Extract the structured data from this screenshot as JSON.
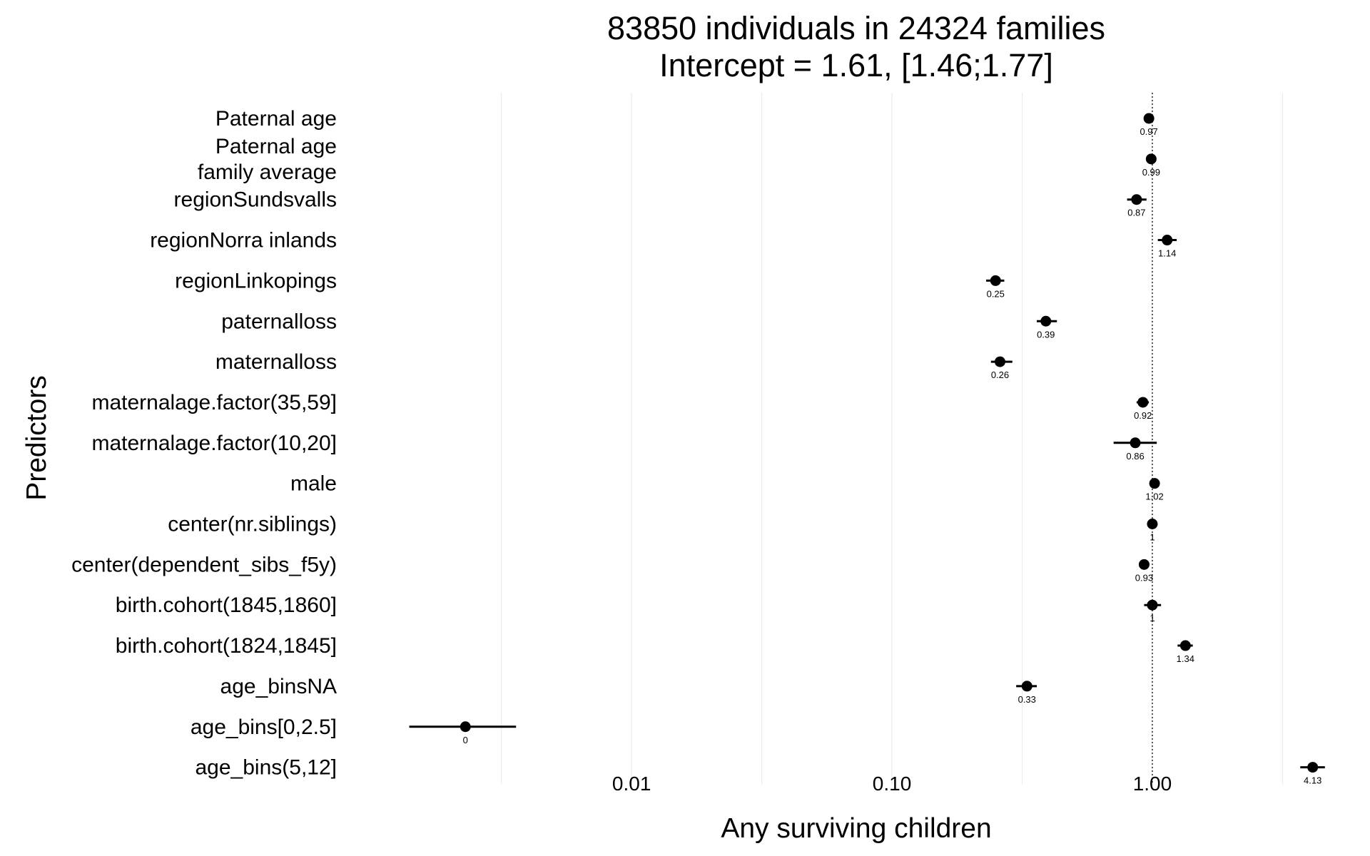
{
  "chart_data": {
    "type": "scatter",
    "title": "83850 individuals in 24324 families",
    "subtitle": "Intercept = 1.61, [1.46;1.77]",
    "xlabel": "Any surviving children",
    "ylabel": "Predictors",
    "x_scale": "log",
    "xlim": [
      0.00088,
      5.0
    ],
    "x_ticks": [
      0.01,
      0.1,
      1
    ],
    "x_tick_labels": [
      "0.01",
      "0.10",
      "1.00"
    ],
    "reference_line": 1,
    "grid": "vertical, faint",
    "legend": "none",
    "point_color": "#000000",
    "predictors": [
      {
        "label": "Paternal age",
        "estimate": 0.97,
        "ci_low": 0.94,
        "ci_high": 1.0,
        "value_label": "0.97"
      },
      {
        "label": "Paternal age\nfamily average",
        "estimate": 0.99,
        "ci_low": 0.97,
        "ci_high": 1.01,
        "value_label": "0.99"
      },
      {
        "label": "regionSundsvalls",
        "estimate": 0.87,
        "ci_low": 0.8,
        "ci_high": 0.95,
        "value_label": "0.87"
      },
      {
        "label": "regionNorra inlands",
        "estimate": 1.14,
        "ci_low": 1.05,
        "ci_high": 1.24,
        "value_label": "1.14"
      },
      {
        "label": "regionLinkopings",
        "estimate": 0.25,
        "ci_low": 0.23,
        "ci_high": 0.27,
        "value_label": "0.25"
      },
      {
        "label": "paternalloss",
        "estimate": 0.39,
        "ci_low": 0.36,
        "ci_high": 0.43,
        "value_label": "0.39"
      },
      {
        "label": "maternalloss",
        "estimate": 0.26,
        "ci_low": 0.24,
        "ci_high": 0.29,
        "value_label": "0.26"
      },
      {
        "label": "maternalage.factor(35,59]",
        "estimate": 0.92,
        "ci_low": 0.87,
        "ci_high": 0.97,
        "value_label": "0.92"
      },
      {
        "label": "maternalage.factor(10,20]",
        "estimate": 0.86,
        "ci_low": 0.71,
        "ci_high": 1.04,
        "value_label": "0.86"
      },
      {
        "label": "male",
        "estimate": 1.02,
        "ci_low": 0.99,
        "ci_high": 1.05,
        "value_label": "1.02"
      },
      {
        "label": "center(nr.siblings)",
        "estimate": 1.0,
        "ci_low": 0.98,
        "ci_high": 1.02,
        "value_label": "1"
      },
      {
        "label": "center(dependent_sibs_f5y)",
        "estimate": 0.93,
        "ci_low": 0.91,
        "ci_high": 0.95,
        "value_label": "0.93"
      },
      {
        "label": "birth.cohort(1845,1860]",
        "estimate": 1.0,
        "ci_low": 0.93,
        "ci_high": 1.08,
        "value_label": "1"
      },
      {
        "label": "birth.cohort(1824,1845]",
        "estimate": 1.34,
        "ci_low": 1.25,
        "ci_high": 1.43,
        "value_label": "1.34"
      },
      {
        "label": "age_binsNA",
        "estimate": 0.33,
        "ci_low": 0.3,
        "ci_high": 0.36,
        "value_label": "0.33"
      },
      {
        "label": "age_bins[0,2.5]",
        "estimate": 0.0023,
        "ci_low": 0.0014,
        "ci_high": 0.0036,
        "value_label": "0"
      },
      {
        "label": "age_bins(5,12]",
        "estimate": 4.13,
        "ci_low": 3.7,
        "ci_high": 4.6,
        "value_label": "4.13"
      }
    ]
  }
}
